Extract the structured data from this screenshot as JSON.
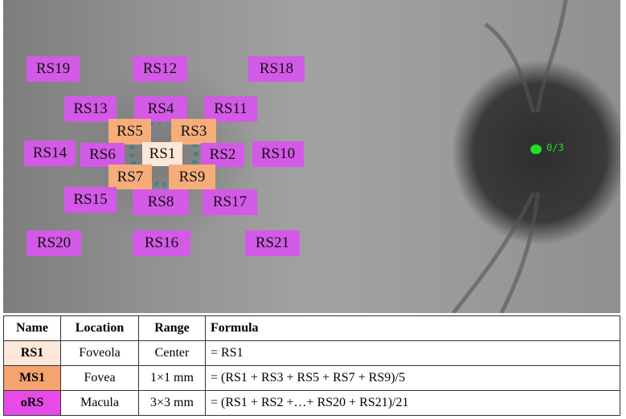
{
  "image": {
    "regions": [
      "RS19",
      "RS12",
      "RS18",
      "RS13",
      "RS4",
      "RS11",
      "RS5",
      "RS3",
      "RS14",
      "RS6",
      "RS1",
      "RS2",
      "RS10",
      "RS7",
      "RS9",
      "RS15",
      "RS8",
      "RS17",
      "RS20",
      "RS16",
      "RS21"
    ],
    "marker": "0/3"
  },
  "table": {
    "header": [
      "Name",
      "Location",
      "Range",
      "Formula"
    ],
    "rows": [
      [
        "RS1",
        "Foveola",
        "Center",
        "= RS1"
      ],
      [
        "MS1",
        "Fovea",
        "1×1 mm",
        "= (RS1 + RS3 + RS5 + RS7 + RS9)/5"
      ],
      [
        "oRS",
        "Macula",
        "3×3 mm",
        "= (RS1 + RS2 +…+ RS20 + RS21)/21"
      ]
    ]
  }
}
